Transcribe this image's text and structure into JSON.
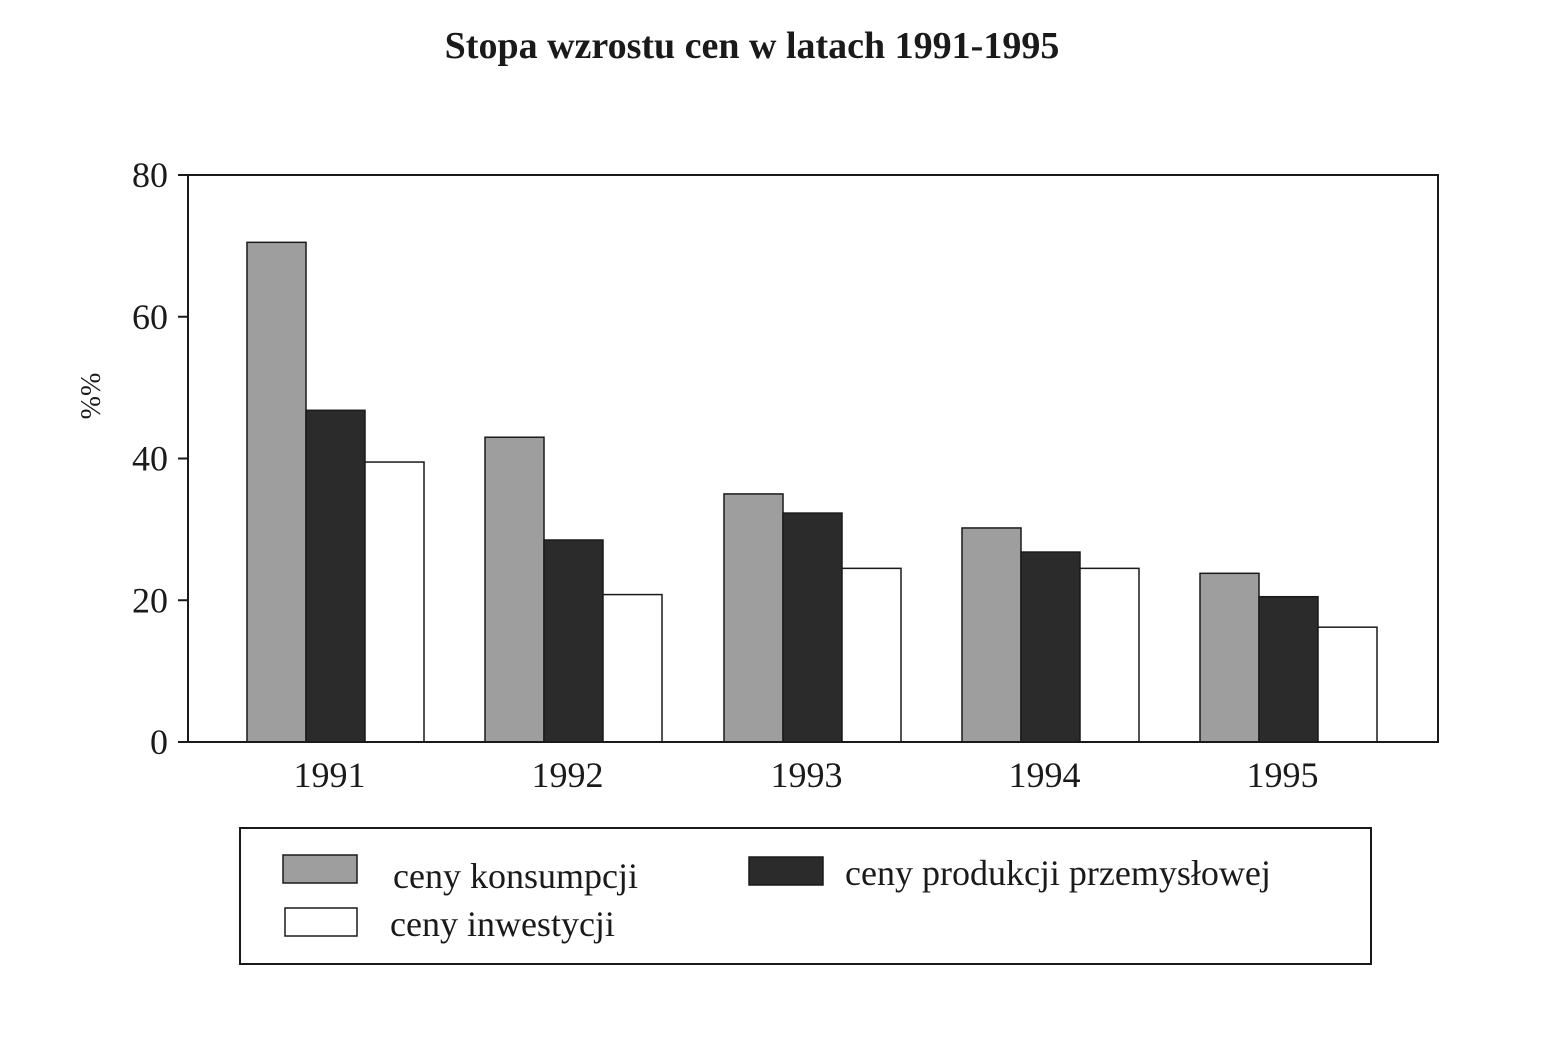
{
  "chart_data": {
    "type": "bar",
    "title": "Stopa wzrostu cen w latach 1991-1995",
    "xlabel": "",
    "ylabel": "%%",
    "ylim": [
      0,
      80
    ],
    "yticks": [
      "0",
      "20",
      "40",
      "60",
      "80"
    ],
    "categories": [
      "1991",
      "1992",
      "1993",
      "1994",
      "1995"
    ],
    "series": [
      {
        "name": "ceny konsumpcji",
        "color": "#9e9e9e",
        "values": [
          70.5,
          43.0,
          35.0,
          30.2,
          23.8
        ]
      },
      {
        "name": "ceny produkcji przemysłowej",
        "color": "#2b2b2b",
        "values": [
          46.8,
          28.5,
          32.3,
          26.8,
          20.5
        ]
      },
      {
        "name": "ceny inwestycji",
        "color": "#ffffff",
        "values": [
          39.5,
          20.8,
          24.5,
          24.5,
          16.2
        ]
      }
    ],
    "grid": false,
    "legend_position": "bottom"
  }
}
